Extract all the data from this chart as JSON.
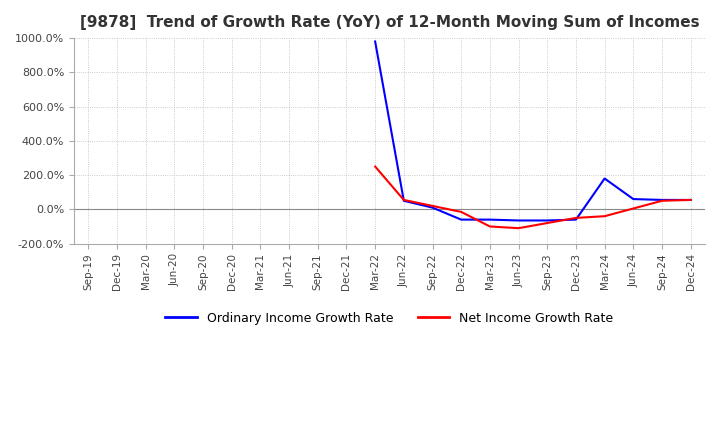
{
  "title": "[9878]  Trend of Growth Rate (YoY) of 12-Month Moving Sum of Incomes",
  "title_fontsize": 11,
  "ylim": [
    -200,
    1000
  ],
  "yticks": [
    -200,
    0,
    200,
    400,
    600,
    800,
    1000
  ],
  "background_color": "#ffffff",
  "plot_bg_color": "#ffffff",
  "grid_color": "#bbbbbb",
  "legend": [
    "Ordinary Income Growth Rate",
    "Net Income Growth Rate"
  ],
  "line_colors": [
    "#0000ff",
    "#ff0000"
  ],
  "dates": [
    "Sep-19",
    "Dec-19",
    "Mar-20",
    "Jun-20",
    "Sep-20",
    "Dec-20",
    "Mar-21",
    "Jun-21",
    "Sep-21",
    "Dec-21",
    "Mar-22",
    "Jun-22",
    "Sep-22",
    "Dec-22",
    "Mar-23",
    "Jun-23",
    "Sep-23",
    "Dec-23",
    "Mar-24",
    "Jun-24",
    "Sep-24",
    "Dec-24"
  ],
  "ordinary_income": [
    null,
    null,
    null,
    null,
    null,
    null,
    null,
    null,
    null,
    null,
    980,
    50,
    10,
    -60,
    -60,
    -65,
    -65,
    -60,
    180,
    60,
    55,
    55
  ],
  "net_income": [
    null,
    null,
    null,
    null,
    null,
    null,
    null,
    null,
    null,
    null,
    250,
    55,
    20,
    -15,
    -100,
    -110,
    -80,
    -50,
    -40,
    5,
    50,
    55
  ]
}
